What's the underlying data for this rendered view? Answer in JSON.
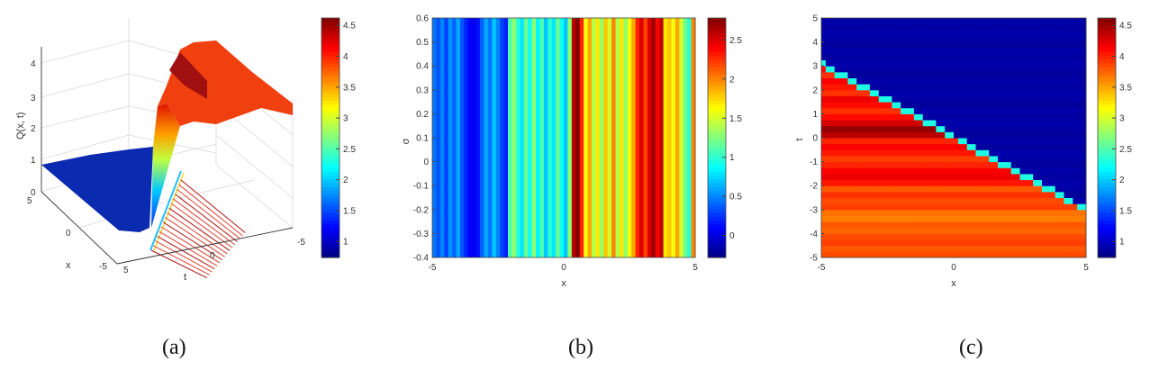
{
  "captions": {
    "a": "(a)",
    "b": "(b)",
    "c": "(c)"
  },
  "chart_data": [
    {
      "type": "surface3d",
      "panel": "a",
      "zlabel": "Q(x, t)",
      "xlabel": "x",
      "ylabel": "t",
      "xticks": [
        "5",
        "0",
        "-5"
      ],
      "tticks": [
        "5",
        "0",
        "-5"
      ],
      "zticks": [
        "0",
        "1",
        "2",
        "3",
        "4"
      ],
      "zlim": [
        0,
        4.5
      ],
      "colorbar": {
        "range": [
          0.74,
          4.62
        ],
        "ticks": [
          1,
          1.5,
          2,
          2.5,
          3,
          3.5,
          4,
          4.5
        ],
        "tick_labels": [
          "1",
          "1.5",
          "2",
          "2.5",
          "3",
          "3.5",
          "4",
          "4.5"
        ]
      },
      "low_value": 0.85,
      "high_value": 3.9
    },
    {
      "type": "heatmap",
      "panel": "b",
      "xlabel": "x",
      "ylabel": "σ",
      "xlim": [
        -5,
        5
      ],
      "ylim": [
        -0.4,
        0.6
      ],
      "xticks": [
        -5,
        0,
        5
      ],
      "xtick_labels": [
        "-5",
        "0",
        "5"
      ],
      "yticks": [
        -0.4,
        -0.3,
        -0.2,
        -0.1,
        0,
        0.1,
        0.2,
        0.3,
        0.4,
        0.5,
        0.6
      ],
      "ytick_labels": [
        "-0.4",
        "-0.3",
        "-0.2",
        "-0.1",
        "0",
        "0.1",
        "0.2",
        "0.3",
        "0.4",
        "0.5",
        "0.6"
      ],
      "colorbar": {
        "range": [
          -0.28,
          2.78
        ],
        "ticks": [
          0,
          0.5,
          1,
          1.5,
          2,
          2.5
        ],
        "tick_labels": [
          "0",
          "0.5",
          "1",
          "1.5",
          "2",
          "2.5"
        ]
      },
      "column_values": [
        0.45,
        0.35,
        0.5,
        0.3,
        0.55,
        0.4,
        0.6,
        0.35,
        0.2,
        0.1,
        0.05,
        0.15,
        0.4,
        0.6,
        0.45,
        0.7,
        0.5,
        0.3,
        0.2,
        1.1,
        1.3,
        1.0,
        0.8,
        1.2,
        0.9,
        1.3,
        0.85,
        1.1,
        0.7,
        1.0,
        0.8,
        1.2,
        0.9,
        0.7,
        1.3,
        2.6,
        2.8,
        2.3,
        1.6,
        1.9,
        1.4,
        1.7,
        1.3,
        1.8,
        1.5,
        2.0,
        1.4,
        1.7,
        1.3,
        1.6,
        1.9,
        2.3,
        2.5,
        2.2,
        2.5,
        2.7,
        2.4,
        2.6,
        1.7,
        1.8,
        1.6,
        1.9,
        1.5,
        1.2,
        1.0,
        2.0
      ]
    },
    {
      "type": "heatmap",
      "panel": "c",
      "xlabel": "x",
      "ylabel": "t",
      "xlim": [
        -5,
        5
      ],
      "ylim": [
        -5,
        5
      ],
      "xticks": [
        -5,
        0,
        5
      ],
      "xtick_labels": [
        "-5",
        "0",
        "5"
      ],
      "yticks": [
        -5,
        -4,
        -3,
        -2,
        -1,
        0,
        1,
        2,
        3,
        4,
        5
      ],
      "ytick_labels": [
        "-5",
        "-4",
        "-3",
        "-2",
        "-1",
        "0",
        "1",
        "2",
        "3",
        "4",
        "5"
      ],
      "colorbar": {
        "range": [
          0.74,
          4.62
        ],
        "ticks": [
          1,
          1.5,
          2,
          2.5,
          3,
          3.5,
          4,
          4.5
        ],
        "tick_labels": [
          "1",
          "1.5",
          "2",
          "2.5",
          "3",
          "3.5",
          "4",
          "4.5"
        ]
      },
      "boundary": {
        "slope": -0.61,
        "intercept": 0.05
      },
      "upper_value": 0.85,
      "row_values_bottom_to_top": [
        3.85,
        3.8,
        3.9,
        3.85,
        3.75,
        3.8,
        3.65,
        3.7,
        3.9,
        3.85,
        3.95,
        3.8,
        4.05,
        4.2,
        4.15,
        4.0,
        3.9,
        4.05,
        4.15,
        4.0,
        4.4,
        4.55,
        4.3,
        4.1,
        3.95,
        4.1,
        4.2,
        3.95,
        4.05,
        4.15,
        3.95,
        4.1,
        4.2,
        4.35,
        4.45,
        4.3,
        4.2,
        4.2,
        4.1,
        4.1
      ]
    }
  ]
}
